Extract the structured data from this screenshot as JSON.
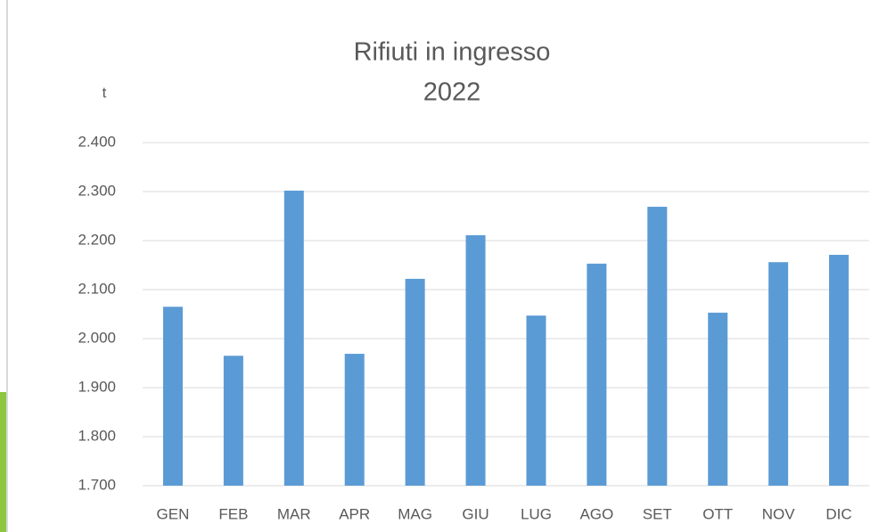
{
  "chart_data": {
    "type": "bar",
    "title": "Rifiuti in ingresso",
    "subtitle": "2022",
    "y_label": "t",
    "categories": [
      "GEN",
      "FEB",
      "MAR",
      "APR",
      "MAG",
      "GIU",
      "LUG",
      "AGO",
      "SET",
      "OTT",
      "NOV",
      "DIC"
    ],
    "values": [
      2065,
      1965,
      2302,
      1969,
      2122,
      2211,
      2047,
      2153,
      2269,
      2053,
      2156,
      2171
    ],
    "color": "#5b9bd5",
    "ylim": [
      1700,
      2400
    ],
    "yticks": [
      {
        "value": 1700,
        "label": "1.700"
      },
      {
        "value": 1800,
        "label": "1.800"
      },
      {
        "value": 1900,
        "label": "1.900"
      },
      {
        "value": 2000,
        "label": "2.000"
      },
      {
        "value": 2100,
        "label": "2.100"
      },
      {
        "value": 2200,
        "label": "2.200"
      },
      {
        "value": 2300,
        "label": "2.300"
      },
      {
        "value": 2400,
        "label": "2.400"
      }
    ],
    "grid": true
  }
}
